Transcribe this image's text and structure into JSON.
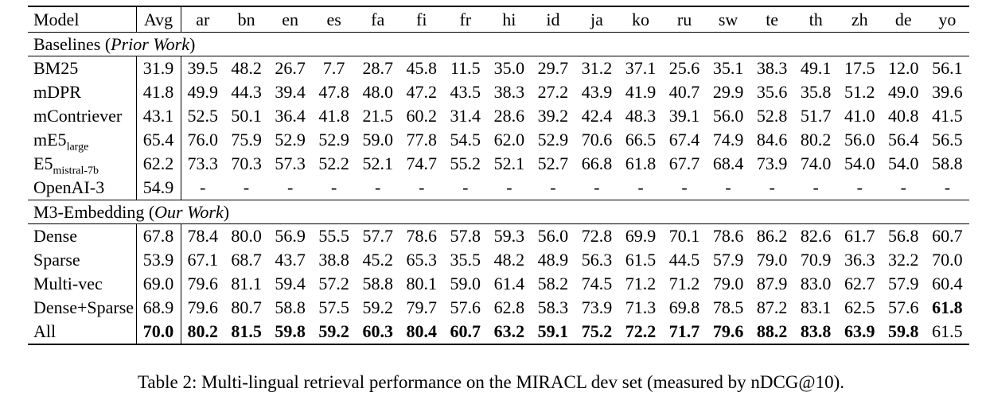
{
  "table": {
    "columns": [
      "Model",
      "Avg",
      "ar",
      "bn",
      "en",
      "es",
      "fa",
      "fi",
      "fr",
      "hi",
      "id",
      "ja",
      "ko",
      "ru",
      "sw",
      "te",
      "th",
      "zh",
      "de",
      "yo"
    ],
    "sections": [
      {
        "title_prefix": "Baselines (",
        "title_italic": "Prior Work",
        "title_suffix": ")",
        "rows": [
          {
            "model": "BM25",
            "avg": "31.9",
            "values": [
              "39.5",
              "48.2",
              "26.7",
              "7.7",
              "28.7",
              "45.8",
              "11.5",
              "35.0",
              "29.7",
              "31.2",
              "37.1",
              "25.6",
              "35.1",
              "38.3",
              "49.1",
              "17.5",
              "12.0",
              "56.1"
            ]
          },
          {
            "model": "mDPR",
            "avg": "41.8",
            "values": [
              "49.9",
              "44.3",
              "39.4",
              "47.8",
              "48.0",
              "47.2",
              "43.5",
              "38.3",
              "27.2",
              "43.9",
              "41.9",
              "40.7",
              "29.9",
              "35.6",
              "35.8",
              "51.2",
              "49.0",
              "39.6"
            ]
          },
          {
            "model": "mContriever",
            "avg": "43.1",
            "values": [
              "52.5",
              "50.1",
              "36.4",
              "41.8",
              "21.5",
              "60.2",
              "31.4",
              "28.6",
              "39.2",
              "42.4",
              "48.3",
              "39.1",
              "56.0",
              "52.8",
              "51.7",
              "41.0",
              "40.8",
              "41.5"
            ]
          },
          {
            "model": "mE5",
            "model_sub": "large",
            "avg": "65.4",
            "values": [
              "76.0",
              "75.9",
              "52.9",
              "52.9",
              "59.0",
              "77.8",
              "54.5",
              "62.0",
              "52.9",
              "70.6",
              "66.5",
              "67.4",
              "74.9",
              "84.6",
              "80.2",
              "56.0",
              "56.4",
              "56.5"
            ]
          },
          {
            "model": "E5",
            "model_sub": "mistral-7b",
            "avg": "62.2",
            "values": [
              "73.3",
              "70.3",
              "57.3",
              "52.2",
              "52.1",
              "74.7",
              "55.2",
              "52.1",
              "52.7",
              "66.8",
              "61.8",
              "67.7",
              "68.4",
              "73.9",
              "74.0",
              "54.0",
              "54.0",
              "58.8"
            ]
          },
          {
            "model": "OpenAI-3",
            "avg": "54.9",
            "values": [
              "-",
              "-",
              "-",
              "-",
              "-",
              "-",
              "-",
              "-",
              "-",
              "-",
              "-",
              "-",
              "-",
              "-",
              "-",
              "-",
              "-",
              "-"
            ]
          }
        ]
      },
      {
        "title_prefix": "M3-Embedding (",
        "title_italic": "Our Work",
        "title_suffix": ")",
        "rows": [
          {
            "model": "Dense",
            "avg": "67.8",
            "values": [
              "78.4",
              "80.0",
              "56.9",
              "55.5",
              "57.7",
              "78.6",
              "57.8",
              "59.3",
              "56.0",
              "72.8",
              "69.9",
              "70.1",
              "78.6",
              "86.2",
              "82.6",
              "61.7",
              "56.8",
              "60.7"
            ]
          },
          {
            "model": "Sparse",
            "avg": "53.9",
            "values": [
              "67.1",
              "68.7",
              "43.7",
              "38.8",
              "45.2",
              "65.3",
              "35.5",
              "48.2",
              "48.9",
              "56.3",
              "61.5",
              "44.5",
              "57.9",
              "79.0",
              "70.9",
              "36.3",
              "32.2",
              "70.0"
            ]
          },
          {
            "model": "Multi-vec",
            "avg": "69.0",
            "values": [
              "79.6",
              "81.1",
              "59.4",
              "57.2",
              "58.8",
              "80.1",
              "59.0",
              "61.4",
              "58.2",
              "74.5",
              "71.2",
              "71.2",
              "79.0",
              "87.9",
              "83.0",
              "62.7",
              "57.9",
              "60.4"
            ]
          },
          {
            "model": "Dense+Sparse",
            "avg": "68.9",
            "values": [
              "79.6",
              "80.7",
              "58.8",
              "57.5",
              "59.2",
              "79.7",
              "57.6",
              "62.8",
              "58.3",
              "73.9",
              "71.3",
              "69.8",
              "78.5",
              "87.2",
              "83.1",
              "62.5",
              "57.6",
              "61.8"
            ],
            "bold_values": [
              17
            ]
          },
          {
            "model": "All",
            "avg": "70.0",
            "avg_bold": true,
            "values": [
              "80.2",
              "81.5",
              "59.8",
              "59.2",
              "60.3",
              "80.4",
              "60.7",
              "63.2",
              "59.1",
              "75.2",
              "72.2",
              "71.7",
              "79.6",
              "88.2",
              "83.8",
              "63.9",
              "59.8",
              "61.5"
            ],
            "bold_values": [
              0,
              1,
              2,
              3,
              4,
              5,
              6,
              7,
              8,
              9,
              10,
              11,
              12,
              13,
              14,
              15,
              16
            ]
          }
        ]
      }
    ]
  },
  "caption": "Table 2: Multi-lingual retrieval performance on the MIRACL dev set (measured by nDCG@10)."
}
